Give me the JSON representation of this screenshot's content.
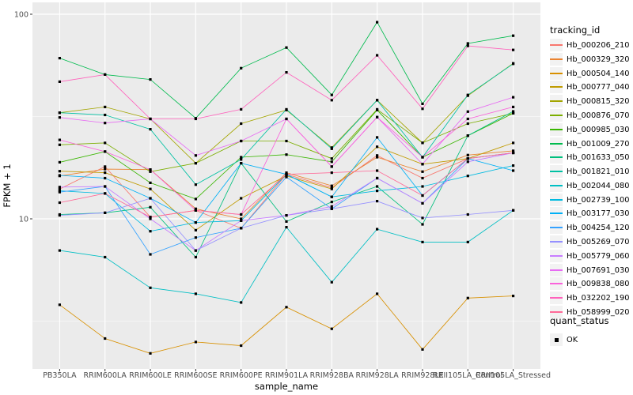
{
  "chart_data": {
    "type": "line",
    "title": "",
    "xlabel": "sample_name",
    "ylabel": "FPKM + 1",
    "y_scale": "log10",
    "y_ticks": [
      100,
      10
    ],
    "y_minor_ticks": [
      31.62,
      3.162
    ],
    "ylim_fpkm": [
      1.85,
      114
    ],
    "grid": true,
    "point_shape": "square",
    "point_color": "#000000",
    "x_categories": [
      "PB350LA",
      "RRIM600LA",
      "RRIM600LE",
      "RRIM600SE",
      "RRIM600PE",
      "RRIM901LA",
      "RRIM928BA",
      "RRIM928LA",
      "RRIM928LE",
      "RRII105LA_Control",
      "RRII105LA_Stressed"
    ],
    "legend": {
      "title": "tracking_id",
      "position": "right"
    },
    "quant_legend": {
      "title": "quant_status",
      "items": [
        {
          "label": "OK",
          "shape": "square",
          "color": "#000000"
        }
      ]
    },
    "colors": {
      "panel_bg": "#EBEBEB",
      "grid": "#FFFFFF",
      "tick_label": "#4D4D4D",
      "tick_mark": "#333333",
      "legend_key_bg": "#F2F2F2"
    },
    "series": [
      {
        "name": "Hb_000206_210",
        "color": "#F8766D",
        "values": [
          14.0,
          18.0,
          10.2,
          11.0,
          9.0,
          16.5,
          14.2,
          20.4,
          15.8,
          19.7,
          21.0
        ]
      },
      {
        "name": "Hb_000329_320",
        "color": "#EA8331",
        "values": [
          16.2,
          17.5,
          17.4,
          11.2,
          10.0,
          16.8,
          14.5,
          20.0,
          17.0,
          20.5,
          21.5
        ]
      },
      {
        "name": "Hb_000504_140",
        "color": "#D89000",
        "values": [
          3.8,
          2.6,
          2.2,
          2.5,
          2.4,
          3.7,
          2.9,
          4.3,
          2.3,
          4.1,
          4.2
        ]
      },
      {
        "name": "Hb_000777_040",
        "color": "#C09B00",
        "values": [
          17.1,
          16.8,
          14.0,
          8.8,
          12.6,
          16.2,
          14.0,
          22.5,
          18.5,
          19.7,
          23.5
        ]
      },
      {
        "name": "Hb_000815_320",
        "color": "#A3A500",
        "values": [
          33.0,
          35.2,
          30.8,
          18.7,
          29.2,
          34.0,
          22.3,
          38.0,
          23.5,
          40.0,
          57.5
        ]
      },
      {
        "name": "Hb_000876_070",
        "color": "#7CAE00",
        "values": [
          23.0,
          23.5,
          17.0,
          18.7,
          24.0,
          24.0,
          19.7,
          34.3,
          23.5,
          29.2,
          32.8
        ]
      },
      {
        "name": "Hb_000985_030",
        "color": "#39B600",
        "values": [
          18.9,
          21.3,
          15.0,
          12.5,
          20.0,
          20.6,
          19.0,
          34.0,
          20.0,
          25.5,
          32.8
        ]
      },
      {
        "name": "Hb_001009_270",
        "color": "#00BB4E",
        "values": [
          61.0,
          50.7,
          48.0,
          31.0,
          54.5,
          68.7,
          40.3,
          91.4,
          36.5,
          72.0,
          78.5
        ]
      },
      {
        "name": "Hb_001633_050",
        "color": "#00BF7D",
        "values": [
          10.5,
          10.7,
          11.4,
          6.5,
          18.7,
          9.7,
          12.1,
          14.4,
          9.4,
          25.5,
          33.5
        ]
      },
      {
        "name": "Hb_001821_010",
        "color": "#00C1A3",
        "values": [
          33.0,
          32.2,
          27.4,
          14.7,
          19.5,
          34.3,
          22.0,
          38.0,
          20.0,
          40.3,
          57.2
        ]
      },
      {
        "name": "Hb_002044_080",
        "color": "#00BFC4",
        "values": [
          7.0,
          6.5,
          4.6,
          4.3,
          3.9,
          9.1,
          4.9,
          8.9,
          7.7,
          7.7,
          11.0
        ]
      },
      {
        "name": "Hb_002739_100",
        "color": "#00BAE0",
        "values": [
          13.7,
          13.3,
          8.7,
          9.6,
          9.8,
          16.5,
          12.8,
          13.7,
          14.4,
          16.2,
          18.2
        ]
      },
      {
        "name": "Hb_003177_030",
        "color": "#00B0F6",
        "values": [
          16.3,
          15.8,
          12.6,
          9.6,
          18.7,
          16.5,
          12.8,
          25.0,
          13.0,
          19.7,
          17.2
        ]
      },
      {
        "name": "Hb_004254_120",
        "color": "#35A2FF",
        "values": [
          13.5,
          14.4,
          6.7,
          8.1,
          9.0,
          16.0,
          11.2,
          15.8,
          11.9,
          19.7,
          21.0
        ]
      },
      {
        "name": "Hb_005269_070",
        "color": "#9590FF",
        "values": [
          10.4,
          10.7,
          12.6,
          7.0,
          9.0,
          10.4,
          11.2,
          12.2,
          10.1,
          10.5,
          11.0
        ]
      },
      {
        "name": "Hb_005779_060",
        "color": "#C77CFF",
        "values": [
          14.3,
          14.4,
          10.0,
          7.0,
          9.8,
          10.4,
          11.5,
          15.8,
          11.9,
          19.0,
          21.0
        ]
      },
      {
        "name": "Hb_007691_030",
        "color": "#E76BF3",
        "values": [
          31.3,
          29.4,
          30.8,
          20.4,
          24.0,
          30.8,
          18.0,
          31.4,
          18.5,
          33.4,
          39.3
        ]
      },
      {
        "name": "Hb_009838_080",
        "color": "#FA62DB",
        "values": [
          24.3,
          21.3,
          17.4,
          11.0,
          10.5,
          30.8,
          18.0,
          31.4,
          20.0,
          30.8,
          35.2
        ]
      },
      {
        "name": "Hb_032202_190",
        "color": "#FF62BC",
        "values": [
          46.8,
          50.7,
          30.8,
          30.8,
          34.3,
          52.0,
          38.0,
          63.0,
          34.5,
          70.0,
          66.9
        ]
      },
      {
        "name": "Hb_058999_020",
        "color": "#FF6A98",
        "values": [
          12.0,
          13.3,
          10.2,
          11.0,
          10.5,
          16.5,
          16.8,
          17.2,
          13.0,
          19.7,
          21.0
        ]
      }
    ]
  }
}
